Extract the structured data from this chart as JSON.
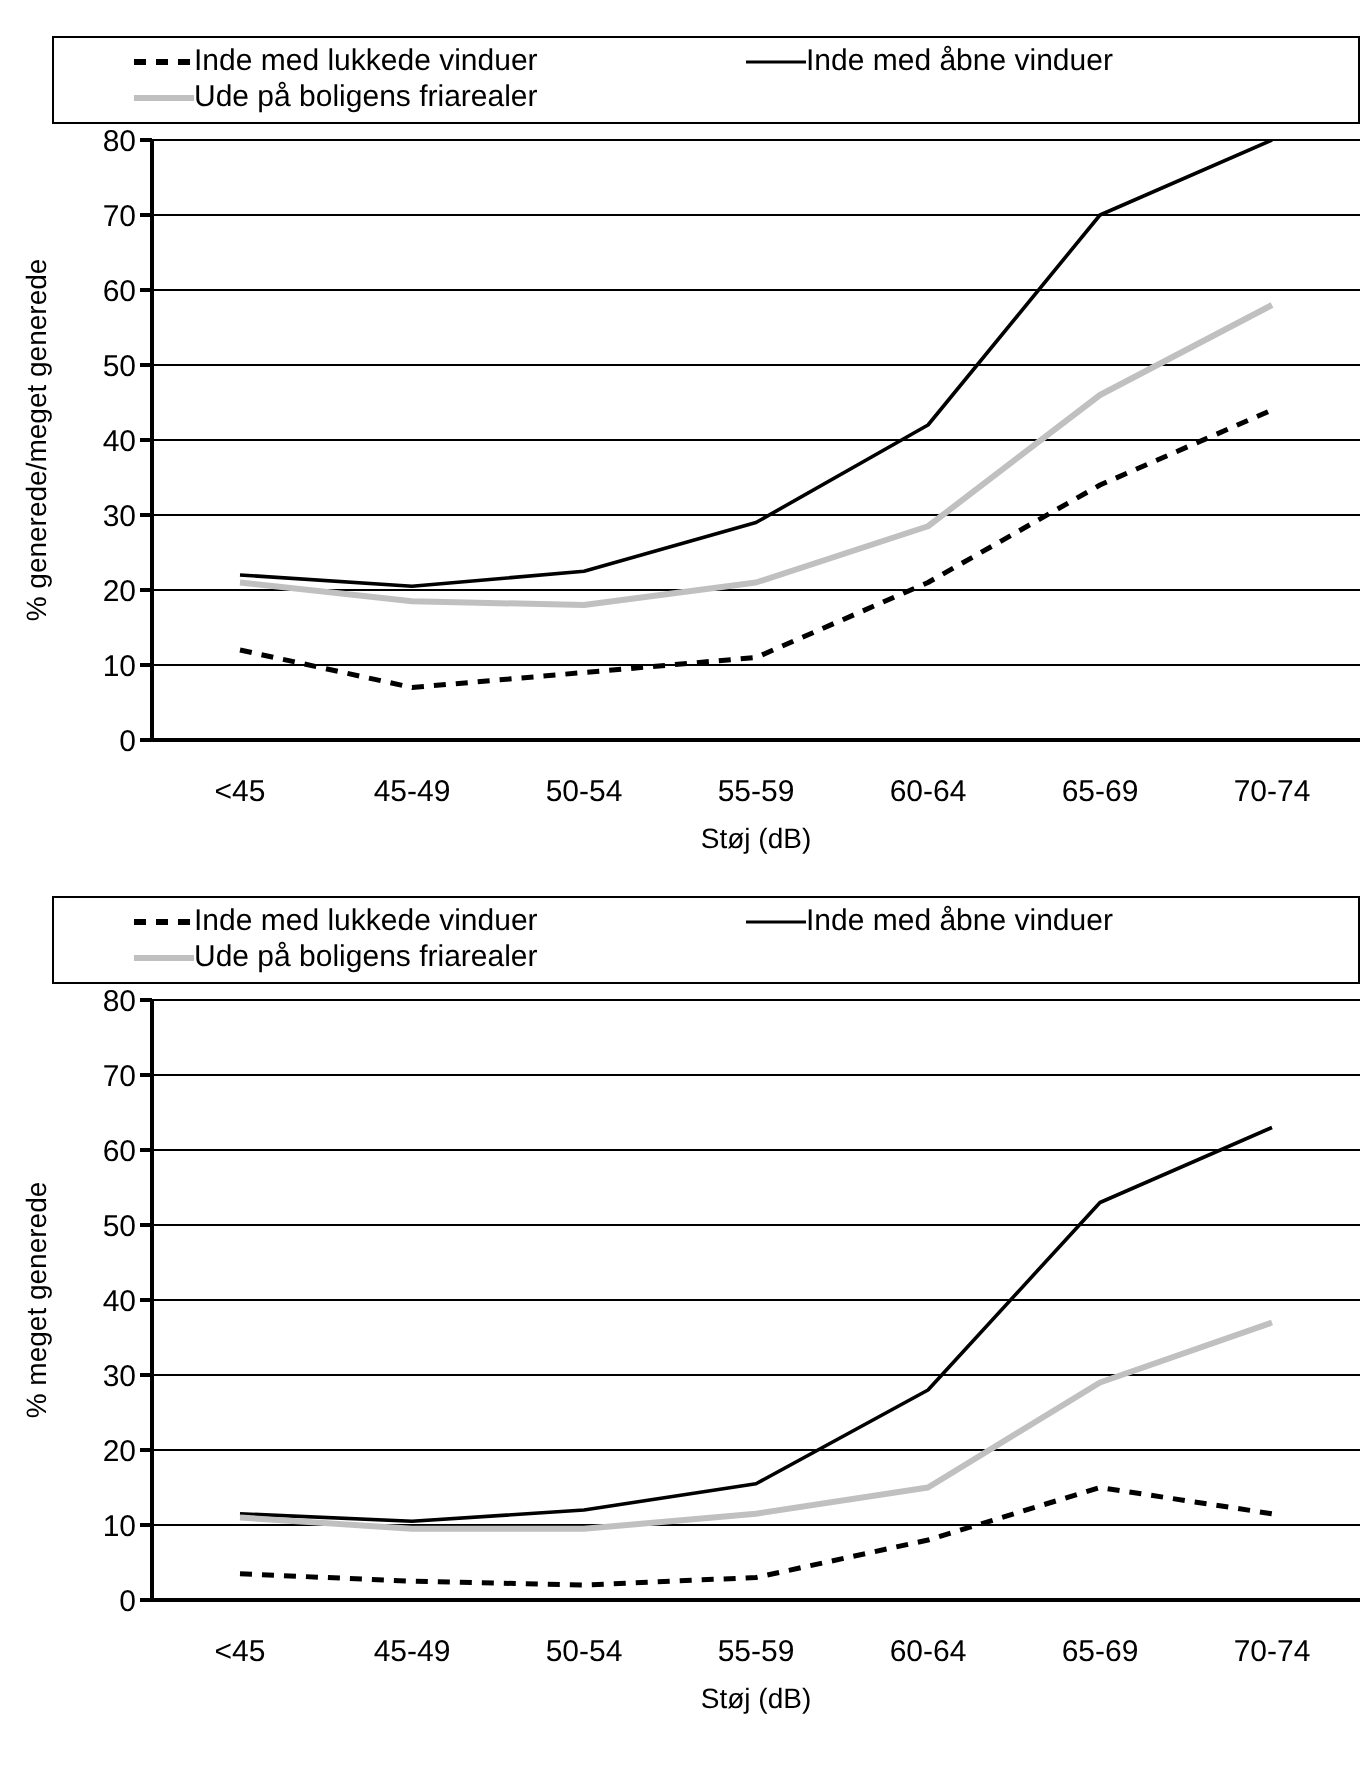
{
  "chart_data": [
    {
      "type": "line",
      "xlabel": "Støj (dB)",
      "ylabel": "% generede/meget generede",
      "categories": [
        "<45",
        "45-49",
        "50-54",
        "55-59",
        "60-64",
        "65-69",
        "70-74"
      ],
      "ylim": [
        0,
        80
      ],
      "yticks": [
        0,
        10,
        20,
        30,
        40,
        50,
        60,
        70,
        80
      ],
      "grid": "y",
      "legend": "top",
      "marker": "none",
      "series": [
        {
          "name": "Inde med lukkede vinduer",
          "color": "#000000",
          "line_style": "dashed",
          "values": [
            12,
            7,
            9,
            11,
            21,
            34,
            44
          ]
        },
        {
          "name": "Inde med åbne vinduer",
          "color": "#000000",
          "line_style": "solid",
          "values": [
            22,
            20.5,
            22.5,
            29,
            42,
            70,
            80
          ]
        },
        {
          "name": "Ude på boligens friarealer",
          "color": "#c0c0c0",
          "line_style": "solid",
          "values": [
            21,
            18.5,
            18,
            21,
            28.5,
            46,
            58
          ]
        }
      ]
    },
    {
      "type": "line",
      "xlabel": "Støj  (dB)",
      "ylabel": "% meget generede",
      "categories": [
        "<45",
        "45-49",
        "50-54",
        "55-59",
        "60-64",
        "65-69",
        "70-74"
      ],
      "ylim": [
        0,
        80
      ],
      "yticks": [
        0,
        10,
        20,
        30,
        40,
        50,
        60,
        70,
        80
      ],
      "grid": "y",
      "legend": "top",
      "marker": "none",
      "series": [
        {
          "name": "Inde med lukkede vinduer",
          "color": "#000000",
          "line_style": "dashed",
          "values": [
            3.5,
            2.5,
            2,
            3,
            8,
            15,
            11.5
          ]
        },
        {
          "name": "Inde med åbne vinduer",
          "color": "#000000",
          "line_style": "solid",
          "values": [
            11.5,
            10.5,
            12,
            15.5,
            28,
            53,
            63
          ]
        },
        {
          "name": "Ude på boligens friarealer",
          "color": "#c0c0c0",
          "line_style": "solid",
          "values": [
            11,
            9.5,
            9.5,
            11.5,
            15,
            29,
            37
          ]
        }
      ]
    }
  ]
}
